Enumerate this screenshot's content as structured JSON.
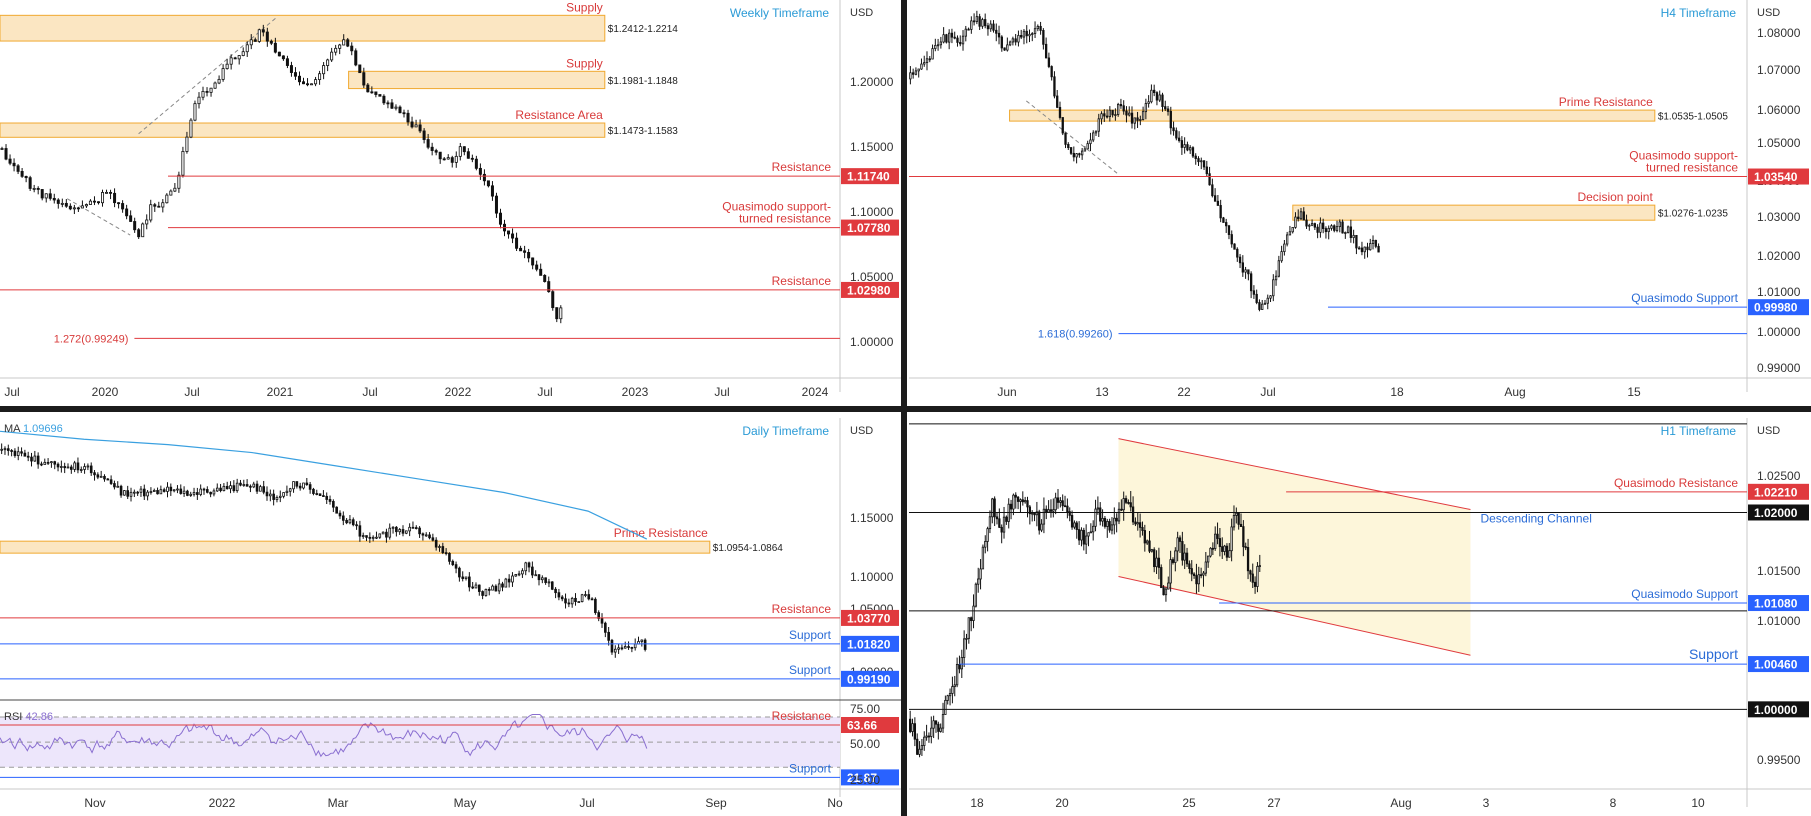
{
  "colors": {
    "zone_fill": "#fbe6c2",
    "zone_stroke": "#f0a930",
    "red": "#e03a3e",
    "red_text": "#d83a3a",
    "blue": "#2962ff",
    "blue_text": "#2a6bd6",
    "title": "#2a9ad6",
    "candle": "#111111",
    "ma": "#3aa0e0",
    "rsi": "#8a6fd0",
    "rsi_band": "#ede6fb",
    "channel_fill": "#fdf6da",
    "divider": "#1c1c1c"
  },
  "chart_data": [
    {
      "id": "weekly",
      "type": "candlestick",
      "timeframe_label": "Weekly Timeframe",
      "currency": "USD",
      "y_range": [
        0.962,
        1.253
      ],
      "y_ticks": [
        "1.20000",
        "1.15000",
        "1.10000",
        "1.05000",
        "1.00000"
      ],
      "x_ticks": [
        "Jul",
        "2020",
        "Jul",
        "2021",
        "Jul",
        "2022",
        "Jul",
        "2023",
        "Jul",
        "2024"
      ],
      "path": [
        [
          0,
          1.138
        ],
        [
          0.02,
          1.122
        ],
        [
          0.04,
          1.108
        ],
        [
          0.07,
          1.095
        ],
        [
          0.1,
          1.093
        ],
        [
          0.13,
          1.105
        ],
        [
          0.15,
          1.088
        ],
        [
          0.165,
          1.072
        ],
        [
          0.18,
          1.094
        ],
        [
          0.195,
          1.098
        ],
        [
          0.21,
          1.112
        ],
        [
          0.22,
          1.142
        ],
        [
          0.235,
          1.178
        ],
        [
          0.255,
          1.188
        ],
        [
          0.27,
          1.205
        ],
        [
          0.285,
          1.212
        ],
        [
          0.31,
          1.228
        ],
        [
          0.325,
          1.218
        ],
        [
          0.345,
          1.2
        ],
        [
          0.36,
          1.188
        ],
        [
          0.375,
          1.193
        ],
        [
          0.39,
          1.206
        ],
        [
          0.405,
          1.222
        ],
        [
          0.42,
          1.212
        ],
        [
          0.435,
          1.182
        ],
        [
          0.455,
          1.178
        ],
        [
          0.475,
          1.167
        ],
        [
          0.495,
          1.156
        ],
        [
          0.515,
          1.138
        ],
        [
          0.535,
          1.128
        ],
        [
          0.55,
          1.139
        ],
        [
          0.565,
          1.128
        ],
        [
          0.58,
          1.112
        ],
        [
          0.595,
          1.084
        ],
        [
          0.615,
          1.063
        ],
        [
          0.63,
          1.052
        ],
        [
          0.645,
          1.038
        ],
        [
          0.655,
          1.025
        ],
        [
          0.662,
          1.005
        ],
        [
          0.67,
          1.018
        ]
      ],
      "candles": 140,
      "seed": 11,
      "zones": [
        {
          "label": "Supply",
          "price_text": "$1.2412-1.2214",
          "top": 1.2412,
          "bottom": 1.2214,
          "x0": 0.0,
          "x1": 0.72
        },
        {
          "label": "Supply",
          "price_text": "$1.1981-1.1848",
          "top": 1.1981,
          "bottom": 1.1848,
          "x0": 0.415,
          "x1": 0.72
        },
        {
          "label": "Resistance Area",
          "price_text": "$1.1473-1.1583",
          "top": 1.1583,
          "bottom": 1.1473,
          "x0": 0.0,
          "x1": 0.72
        }
      ],
      "levels": [
        {
          "label": "Resistance",
          "value": 1.1174,
          "tag": "1.11740",
          "color": "red",
          "x0": 0.2
        },
        {
          "label": "Quasimodo support-\nturned resistance",
          "value": 1.0778,
          "tag": "1.07780",
          "color": "red",
          "x0": 0.2
        },
        {
          "label": "Resistance",
          "value": 1.0298,
          "tag": "1.02980",
          "color": "red",
          "x0": 0.0
        },
        {
          "label": "1.272(0.99249)",
          "value": 0.99249,
          "tag": "",
          "color": "red",
          "x0": 0.16,
          "label_left": true
        }
      ],
      "dashes": [
        [
          [
            0.08,
            1.1
          ],
          [
            0.155,
            1.072
          ]
        ],
        [
          [
            0.165,
            1.15
          ],
          [
            0.33,
            1.24
          ]
        ]
      ]
    },
    {
      "id": "h4",
      "type": "candlestick",
      "timeframe_label": "H4 Timeframe",
      "currency": "USD",
      "y_range": [
        0.9805,
        1.0835
      ],
      "y_ticks": [
        "1.08000",
        "1.07000",
        "1.06000",
        "1.05000",
        "1.04000",
        "1.03000",
        "1.02000",
        "1.01000",
        "1.00000",
        "0.99000"
      ],
      "x_ticks": [
        "Jun",
        "13",
        "22",
        "Jul",
        "18",
        "Aug",
        "15"
      ],
      "path": [
        [
          0,
          1.062
        ],
        [
          0.02,
          1.066
        ],
        [
          0.04,
          1.074
        ],
        [
          0.06,
          1.072
        ],
        [
          0.08,
          1.078
        ],
        [
          0.1,
          1.076
        ],
        [
          0.115,
          1.07
        ],
        [
          0.135,
          1.074
        ],
        [
          0.155,
          1.077
        ],
        [
          0.17,
          1.062
        ],
        [
          0.185,
          1.046
        ],
        [
          0.2,
          1.041
        ],
        [
          0.215,
          1.044
        ],
        [
          0.23,
          1.052
        ],
        [
          0.25,
          1.054
        ],
        [
          0.27,
          1.05
        ],
        [
          0.29,
          1.058
        ],
        [
          0.305,
          1.055
        ],
        [
          0.32,
          1.045
        ],
        [
          0.335,
          1.043
        ],
        [
          0.35,
          1.04
        ],
        [
          0.365,
          1.028
        ],
        [
          0.38,
          1.02
        ],
        [
          0.395,
          1.012
        ],
        [
          0.41,
          1.005
        ],
        [
          0.42,
          0.9985
        ],
        [
          0.435,
          1.006
        ],
        [
          0.45,
          1.018
        ],
        [
          0.465,
          1.025
        ],
        [
          0.48,
          1.022
        ],
        [
          0.495,
          1.021
        ],
        [
          0.51,
          1.022
        ],
        [
          0.525,
          1.021
        ],
        [
          0.54,
          1.014
        ],
        [
          0.552,
          1.019
        ],
        [
          0.562,
          1.015
        ]
      ],
      "candles": 170,
      "seed": 23,
      "zones": [
        {
          "label": "Prime Resistance",
          "price_text": "$1.0535-1.0505",
          "top": 1.0535,
          "bottom": 1.0505,
          "x0": 0.12,
          "x1": 0.89
        },
        {
          "label": "Decision point",
          "price_text": "$1.0276-1.0235",
          "top": 1.0276,
          "bottom": 1.0235,
          "x0": 0.458,
          "x1": 0.89
        }
      ],
      "levels": [
        {
          "label": "Quasimodo support-\nturned resistance",
          "value": 1.0354,
          "tag": "1.03540",
          "color": "red",
          "x0": 0.0
        },
        {
          "label": "Quasimodo Support",
          "value": 0.9998,
          "tag": "0.99980",
          "color": "blue",
          "x0": 0.5
        },
        {
          "label": "1.618(0.99260)",
          "value": 0.9926,
          "tag": "",
          "color": "blue",
          "x0": 0.25,
          "label_left": true
        }
      ],
      "dashes": [
        [
          [
            0.14,
            1.056
          ],
          [
            0.25,
            1.036
          ]
        ]
      ]
    },
    {
      "id": "daily",
      "type": "candlestick",
      "timeframe_label": "Daily Timeframe",
      "currency": "USD",
      "y_range": [
        0.976,
        1.188
      ],
      "y_ticks": [
        "1.15000",
        "1.10000",
        "1.05000",
        "1.00000"
      ],
      "x_ticks": [
        "Nov",
        "2022",
        "Mar",
        "May",
        "Jul",
        "Sep",
        "No"
      ],
      "ma": {
        "label": "MA",
        "value_text": "1.09696",
        "points": [
          [
            0,
            1.178
          ],
          [
            0.1,
            1.172
          ],
          [
            0.2,
            1.168
          ],
          [
            0.3,
            1.162
          ],
          [
            0.4,
            1.152
          ],
          [
            0.5,
            1.142
          ],
          [
            0.6,
            1.132
          ],
          [
            0.7,
            1.118
          ],
          [
            0.77,
            1.097
          ]
        ]
      },
      "path": [
        [
          0,
          1.164
        ],
        [
          0.03,
          1.158
        ],
        [
          0.06,
          1.154
        ],
        [
          0.09,
          1.152
        ],
        [
          0.12,
          1.146
        ],
        [
          0.145,
          1.132
        ],
        [
          0.17,
          1.132
        ],
        [
          0.2,
          1.134
        ],
        [
          0.23,
          1.132
        ],
        [
          0.26,
          1.135
        ],
        [
          0.3,
          1.138
        ],
        [
          0.325,
          1.128
        ],
        [
          0.35,
          1.139
        ],
        [
          0.38,
          1.132
        ],
        [
          0.41,
          1.113
        ],
        [
          0.44,
          1.095
        ],
        [
          0.47,
          1.104
        ],
        [
          0.5,
          1.103
        ],
        [
          0.525,
          1.089
        ],
        [
          0.55,
          1.068
        ],
        [
          0.575,
          1.055
        ],
        [
          0.6,
          1.063
        ],
        [
          0.625,
          1.078
        ],
        [
          0.65,
          1.064
        ],
        [
          0.675,
          1.05
        ],
        [
          0.7,
          1.054
        ],
        [
          0.715,
          1.038
        ],
        [
          0.73,
          1.012
        ],
        [
          0.745,
          1.015
        ],
        [
          0.76,
          1.02
        ],
        [
          0.77,
          1.016
        ]
      ],
      "candles": 195,
      "seed": 37,
      "zones": [
        {
          "label": "Prime Resistance",
          "price_text": "$1.0954-1.0864",
          "top": 1.0954,
          "bottom": 1.0864,
          "x0": 0.0,
          "x1": 0.845
        }
      ],
      "levels": [
        {
          "label": "Resistance",
          "value": 1.0377,
          "tag": "1.03770",
          "color": "red",
          "x0": 0.0
        },
        {
          "label": "Support",
          "value": 1.0182,
          "tag": "1.01820",
          "color": "blue",
          "x0": 0.0
        },
        {
          "label": "Support",
          "value": 0.9919,
          "tag": "0.99190",
          "color": "blue",
          "x0": 0.0
        }
      ],
      "rsi": {
        "label": "RSI",
        "value_text": "42.86",
        "y_range": [
          15,
          82
        ],
        "y_ticks": [
          "75.00",
          "50.00",
          "25.00"
        ],
        "resistance": {
          "label": "Resistance",
          "value": 63.66,
          "tag": "63.66"
        },
        "support": {
          "label": "Support",
          "value": 21.87,
          "tag": "21.87"
        },
        "upper": 70,
        "mid": 50,
        "lower": 30,
        "seed": 41
      }
    },
    {
      "id": "h1",
      "type": "candlestick",
      "timeframe_label": "H1 Timeframe",
      "currency": "USD",
      "y_range": [
        0.9915,
        1.0296
      ],
      "y_ticks": [
        "1.02500",
        "1.01500",
        "1.01000",
        "0.99500"
      ],
      "x_ticks": [
        "18",
        "20",
        "25",
        "27",
        "Aug",
        "3",
        "8",
        "10"
      ],
      "path": [
        [
          0,
          0.999
        ],
        [
          0.01,
          0.996
        ],
        [
          0.02,
          0.998
        ],
        [
          0.035,
          0.998
        ],
        [
          0.05,
          1.002
        ],
        [
          0.065,
          1.006
        ],
        [
          0.08,
          1.012
        ],
        [
          0.09,
          1.017
        ],
        [
          0.1,
          1.021
        ],
        [
          0.11,
          1.018
        ],
        [
          0.125,
          1.022
        ],
        [
          0.14,
          1.021
        ],
        [
          0.155,
          1.019
        ],
        [
          0.165,
          1.02
        ],
        [
          0.18,
          1.021
        ],
        [
          0.195,
          1.019
        ],
        [
          0.21,
          1.017
        ],
        [
          0.225,
          1.02
        ],
        [
          0.24,
          1.019
        ],
        [
          0.26,
          1.021
        ],
        [
          0.275,
          1.018
        ],
        [
          0.29,
          1.016
        ],
        [
          0.305,
          1.012
        ],
        [
          0.32,
          1.017
        ],
        [
          0.335,
          1.014
        ],
        [
          0.35,
          1.013
        ],
        [
          0.365,
          1.017
        ],
        [
          0.38,
          1.016
        ],
        [
          0.39,
          1.02
        ],
        [
          0.4,
          1.017
        ],
        [
          0.41,
          1.012
        ],
        [
          0.42,
          1.015
        ]
      ],
      "candles": 150,
      "seed": 53,
      "channel": {
        "label": "Descending Channel",
        "upper": [
          [
            0.25,
            1.0275
          ],
          [
            0.67,
            1.0203
          ]
        ],
        "lower": [
          [
            0.25,
            1.0135
          ],
          [
            0.67,
            1.0055
          ]
        ]
      },
      "levels": [
        {
          "label": "Quasimodo Resistance",
          "value": 1.0221,
          "tag": "1.02210",
          "color": "red",
          "x0": 0.45
        },
        {
          "label": "",
          "value": 1.02,
          "tag": "1.02000",
          "color": "black",
          "x0": 0.0
        },
        {
          "label": "Quasimodo Support",
          "value": 1.0108,
          "tag": "1.01080",
          "color": "blue",
          "x0": 0.37
        },
        {
          "label": "",
          "value": 1.01,
          "tag": "",
          "color": "black",
          "x0": 0.0
        },
        {
          "label": "Support",
          "value": 1.0046,
          "tag": "1.00460",
          "color": "blue",
          "x0": 0.06,
          "big": true
        },
        {
          "label": "",
          "value": 1.0,
          "tag": "1.00000",
          "color": "black",
          "x0": 0.0
        },
        {
          "label": "",
          "value": 1.029,
          "tag": "",
          "color": "black",
          "x0": 0.0
        }
      ]
    }
  ]
}
